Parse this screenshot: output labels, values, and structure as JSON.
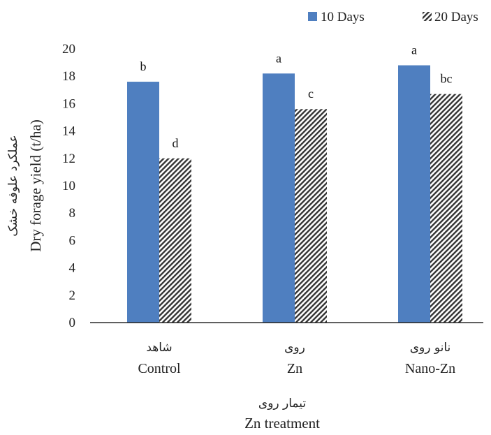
{
  "chart_data": {
    "type": "bar",
    "categories": [
      {
        "label_fa": "شاهد",
        "label_en": "Control"
      },
      {
        "label_fa": "روی",
        "label_en": "Zn"
      },
      {
        "label_fa": "نانو روی",
        "label_en": "Nano-Zn"
      }
    ],
    "series": [
      {
        "name": "10 Days",
        "values": [
          17.6,
          18.2,
          18.8
        ],
        "letters": [
          "b",
          "a",
          "a"
        ],
        "color": "#4f7fc0",
        "pattern": "solid"
      },
      {
        "name": "20 Days",
        "values": [
          12.0,
          15.6,
          16.7
        ],
        "letters": [
          "d",
          "c",
          "bc"
        ],
        "color": "#333333",
        "pattern": "diagonal-hatch"
      }
    ],
    "ylim": [
      0,
      20
    ],
    "yticks": [
      0,
      2,
      4,
      6,
      8,
      10,
      12,
      14,
      16,
      18,
      20
    ],
    "ylabel_fa": "عملکرد علوفه خشک",
    "ylabel_en": "Dry forage yield (t/ha)",
    "xlabel_fa": "تیمار روی",
    "xlabel_en": "Zn treatment",
    "legend_position": "top-right",
    "grid": false
  }
}
